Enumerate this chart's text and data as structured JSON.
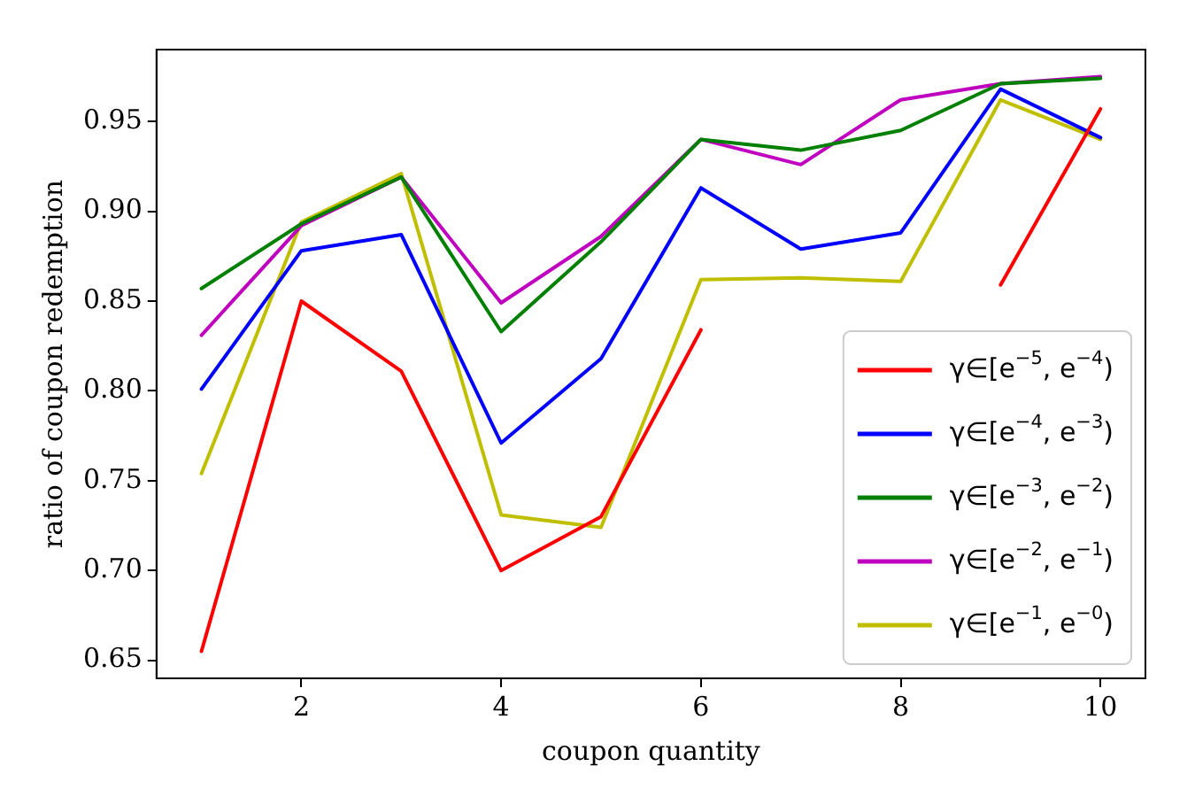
{
  "chart_data": {
    "type": "line",
    "xlabel": "coupon quantity",
    "ylabel": "ratio of coupon redemption",
    "x": [
      1,
      2,
      3,
      4,
      5,
      6,
      7,
      8,
      9,
      10
    ],
    "xlim": [
      0.55,
      10.45
    ],
    "xticks": [
      2,
      4,
      6,
      8,
      10
    ],
    "ylim": [
      0.64,
      0.99
    ],
    "yticks": [
      0.65,
      {
        "value": 0.7,
        "label": "0.70"
      },
      0.75,
      {
        "value": 0.8,
        "label": "0.80"
      },
      0.85,
      {
        "value": 0.9,
        "label": "0.90"
      },
      0.95
    ],
    "grid": false,
    "legend": "bottom right",
    "marker": "none",
    "line_style": "solid",
    "series": [
      {
        "name": "γ∈[e$^{−5}$, e$^{−4}$)",
        "color": "#ff0000",
        "values": [
          0.655,
          0.85,
          0.811,
          0.7,
          0.73,
          0.834,
          null,
          null,
          0.859,
          0.957
        ]
      },
      {
        "name": "γ∈[e$^{−4}$, e$^{−3}$)",
        "color": "#0000ff",
        "values": [
          0.801,
          0.878,
          0.887,
          0.771,
          0.818,
          0.913,
          0.879,
          0.888,
          0.968,
          0.941
        ]
      },
      {
        "name": "γ∈[e$^{−3}$, e$^{−2}$)",
        "color": "#008000",
        "values": [
          0.857,
          0.893,
          0.919,
          0.833,
          0.883,
          0.94,
          0.934,
          0.945,
          0.971,
          0.974
        ]
      },
      {
        "name": "γ∈[e$^{−2}$, e$^{−1}$)",
        "color": "#bf00bf",
        "values": [
          0.831,
          0.892,
          0.919,
          0.849,
          0.886,
          0.94,
          0.926,
          0.962,
          0.971,
          0.975
        ]
      },
      {
        "name": "γ∈[e$^{−1}$, e$^{−0}$)",
        "color": "#bfbf00",
        "values": [
          0.754,
          0.894,
          0.921,
          0.731,
          0.724,
          0.862,
          0.863,
          0.861,
          0.962,
          0.94
        ]
      }
    ]
  }
}
